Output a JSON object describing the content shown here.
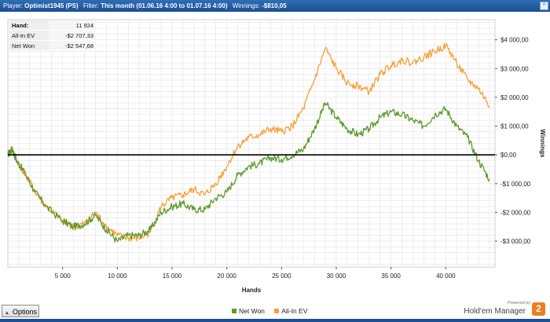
{
  "titlebar": {
    "player_label": "Player:",
    "player_value": "Optimist1945 (PS)",
    "filter_label": "Filter:",
    "filter_value": "This month (01.06.16 4:00 to 01.07.16 4:00)",
    "winnings_label": "Winnings:",
    "winnings_value": "-$810,05",
    "collapse_glyph": "^"
  },
  "stats": [
    {
      "label": "Hand:",
      "value": "11 924"
    },
    {
      "label": "All-In EV",
      "value": "-$2 707,33"
    },
    {
      "label": "Net Won",
      "value": "-$2 547,68"
    }
  ],
  "footer": {
    "options_label": "Options",
    "powered_by": "Powered by",
    "brand": "Hold'em Manager",
    "brand_number": "2"
  },
  "colors": {
    "net_won": "#5c9a2f",
    "all_in_ev": "#f7a13c",
    "grid": "#e2e2e2",
    "zero_line": "#000000"
  },
  "chart_data": {
    "type": "line",
    "xlabel": "Hands",
    "ylabel": "Winnings",
    "xlim": [
      0,
      44500
    ],
    "ylim": [
      -3900,
      4700
    ],
    "x_ticks": [
      5000,
      10000,
      15000,
      20000,
      25000,
      30000,
      35000,
      40000
    ],
    "x_tick_labels": [
      "5 000",
      "10 000",
      "15 000",
      "20 000",
      "25 000",
      "30 000",
      "35 000",
      "40 000"
    ],
    "y_ticks": [
      -3000,
      -2000,
      -1000,
      0,
      1000,
      2000,
      3000,
      4000
    ],
    "y_tick_labels": [
      "-$3 000,00",
      "-$2 000,00",
      "-$1 000,00",
      "$0,00",
      "$1 000,00",
      "$2 000,00",
      "$3 000,00",
      "$4 000,00"
    ],
    "grid": true,
    "legend_position": "bottom-center",
    "series": [
      {
        "name": "Net Won",
        "x": [
          0,
          400,
          800,
          1500,
          2500,
          3500,
          5000,
          6000,
          7000,
          8000,
          9000,
          10000,
          11000,
          12000,
          13000,
          14000,
          15000,
          16000,
          17000,
          18000,
          19000,
          20000,
          21000,
          22000,
          23000,
          24000,
          25000,
          26000,
          27000,
          28000,
          29000,
          30000,
          31000,
          32000,
          33000,
          34000,
          35000,
          36000,
          37000,
          38000,
          39000,
          40000,
          41000,
          42000,
          43000,
          44000
        ],
        "y": [
          0,
          200,
          -200,
          -600,
          -1300,
          -1800,
          -2300,
          -2500,
          -2400,
          -2100,
          -2600,
          -3000,
          -2800,
          -2800,
          -2600,
          -2000,
          -1800,
          -1700,
          -1900,
          -1900,
          -1500,
          -1300,
          -700,
          -400,
          -300,
          -100,
          -150,
          0,
          200,
          900,
          1800,
          1300,
          900,
          700,
          900,
          1300,
          1500,
          1400,
          1200,
          1000,
          1400,
          1600,
          1000,
          600,
          -200,
          -850
        ]
      },
      {
        "name": "All-In EV",
        "x": [
          0,
          400,
          800,
          1500,
          2500,
          3500,
          5000,
          6000,
          7000,
          8000,
          9000,
          10000,
          11000,
          12000,
          13000,
          14000,
          15000,
          16000,
          17000,
          18000,
          19000,
          20000,
          21000,
          22000,
          23000,
          24000,
          25000,
          26000,
          27000,
          28000,
          29000,
          30000,
          31000,
          32000,
          33000,
          34000,
          35000,
          36000,
          37000,
          38000,
          39000,
          40000,
          41000,
          42000,
          43000,
          44000
        ],
        "y": [
          0,
          200,
          -200,
          -600,
          -1300,
          -1800,
          -2300,
          -2500,
          -2400,
          -2000,
          -2500,
          -2800,
          -2900,
          -2900,
          -2700,
          -1800,
          -1500,
          -1400,
          -1200,
          -1400,
          -1000,
          -400,
          300,
          600,
          700,
          900,
          800,
          1000,
          1600,
          2600,
          3700,
          3000,
          2500,
          2400,
          2200,
          2800,
          3100,
          3300,
          3200,
          3400,
          3600,
          3800,
          3200,
          2600,
          2300,
          1700
        ]
      }
    ]
  }
}
